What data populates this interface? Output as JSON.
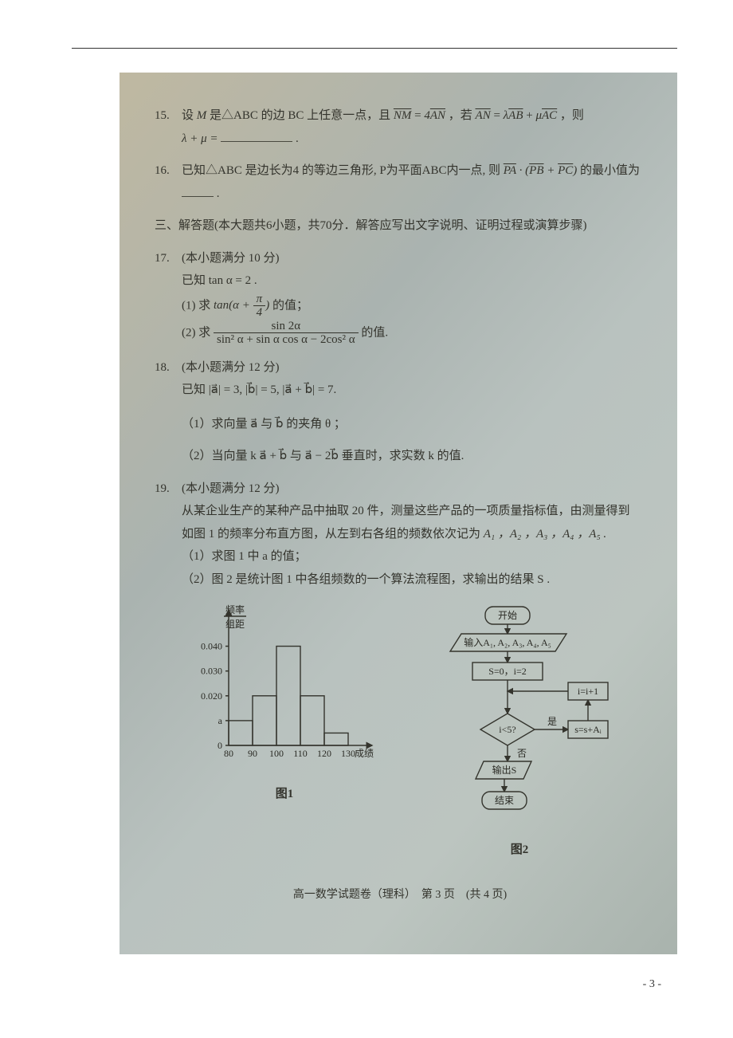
{
  "q15": {
    "num": "15.",
    "text_a": "设",
    "M": "M",
    "text_b": "是△ABC 的边 BC 上任意一点，且",
    "eq1_lhs": "NM",
    "eq1_rhs": "AN",
    "eq1_coeff": "4",
    "text_c": "，若",
    "eq2_lhs": "AN",
    "eq2_r1c": "λ",
    "eq2_r1": "AB",
    "eq2_r2c": "μ",
    "eq2_r2": "AC",
    "text_d": "，则",
    "ans_label": "λ + μ =",
    "period": "."
  },
  "q16": {
    "num": "16.",
    "text_a": "已知△ABC 是边长为4 的等边三角形, P为平面ABC内一点, 则",
    "v1": "PA",
    "v2": "PB",
    "v3": "PC",
    "text_b": "的最小值为",
    "period": "."
  },
  "sec3": "三、解答题(本大题共6小题，共70分．解答应写出文字说明、证明过程或演算步骤)",
  "q17": {
    "num": "17.",
    "title": "(本小题满分 10 分)",
    "given": "已知 tan α = 2 .",
    "p1_label": "(1) 求",
    "p1_inner_pre": "tan(α + ",
    "p1_num": "π",
    "p1_den": "4",
    "p1_inner_post": ")",
    "p1_tail": "的值；",
    "p2_label": "(2) 求",
    "p2_num": "sin 2α",
    "p2_den": "sin² α + sin α cos α − 2cos² α",
    "p2_tail": "的值."
  },
  "q18": {
    "num": "18.",
    "title": "(本小题满分 12 分)",
    "given_a": "已知",
    "given_eq": "|a⃗| = 3, |b⃗| = 5, |a⃗ + b⃗| = 7.",
    "p1": "（1）求向量 a⃗ 与 b⃗ 的夹角 θ ；",
    "p2": "（2）当向量 k a⃗ + b⃗ 与 a⃗ − 2b⃗ 垂直时，求实数 k 的值."
  },
  "q19": {
    "num": "19.",
    "title": "(本小题满分 12 分)",
    "line1": "从某企业生产的某种产品中抽取 20 件，测量这些产品的一项质量指标值，由测量得到",
    "line2_a": "如图 1 的频率分布直方图，从左到右各组的频数依次记为",
    "seq": "A₁ ，A₂ ，A₃ ，A₄ ，A₅ .",
    "p1": "（1）求图 1 中 a 的值；",
    "p2": "（2）图 2 是统计图 1 中各组频数的一个算法流程图，求输出的结果 S ."
  },
  "histogram": {
    "ylabel_top": "频率",
    "ylabel_bot": "组距",
    "yticks": [
      "0.040",
      "0.030",
      "0.020",
      "a",
      "0"
    ],
    "xticks": [
      "80",
      "90",
      "100",
      "110",
      "120",
      "130"
    ],
    "xlabel": "成绩",
    "caption": "图1",
    "bars": [
      0.01,
      0.02,
      0.04,
      0.02,
      0.005
    ],
    "ymax": 0.045,
    "axis_color": "#34342d"
  },
  "flowchart": {
    "start": "开始",
    "input": "输入A₁, A₂, A₃, A₄, A₅",
    "init": "S=0，i=2",
    "cond": "i<5?",
    "yes": "是",
    "no": "否",
    "upd_s": "s=s+Aᵢ",
    "upd_i": "i=i+1",
    "output": "输出S",
    "end": "结束",
    "caption": "图2"
  },
  "footer": "高一数学试题卷（理科）　第 3 页　(共 4 页)",
  "page_num": "- 3 -"
}
